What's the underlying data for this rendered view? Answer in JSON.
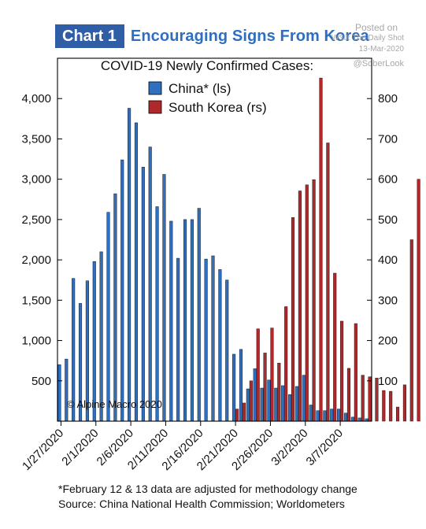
{
  "header": {
    "badge": "Chart 1",
    "title": "Encouraging Signs From Korea"
  },
  "watermark": {
    "posted_on": "Posted on",
    "source": "WSJ: The Daily Shot",
    "date": "13-Mar-2020",
    "handle": "@SoberLook"
  },
  "footnotes": {
    "note": "*February 12 & 13 data are adjusted for methodology change",
    "source": "Source: China National Health Commission; Worldometers"
  },
  "colors": {
    "china": "#2f6fc0",
    "south_korea": "#b0282a",
    "title_blue": "#2f6fc0",
    "badge_bg": "#2f5ea6"
  },
  "chart_data": {
    "type": "bar",
    "title": "COVID-19 Newly Confirmed Cases:",
    "annotation": "© Alpine Macro 2020",
    "legend_position": "top-center",
    "grid": false,
    "left_axis": {
      "range": [
        0,
        4500
      ],
      "ticks": [
        500,
        1000,
        1500,
        2000,
        2500,
        3000,
        3500,
        4000
      ],
      "tick_labels": [
        "500",
        "1,000",
        "1,500",
        "2,000",
        "2,500",
        "3,000",
        "3,500",
        "4,000"
      ]
    },
    "right_axis": {
      "range": [
        0,
        900
      ],
      "ticks": [
        100,
        200,
        300,
        400,
        500,
        600,
        700,
        800
      ],
      "tick_labels": [
        "100",
        "200",
        "300",
        "400",
        "500",
        "600",
        "700",
        "800"
      ]
    },
    "x_tick_labels": [
      "1/27/2020",
      "2/1/2020",
      "2/6/2020",
      "2/11/2020",
      "2/16/2020",
      "2/21/2020",
      "2/26/2020",
      "3/2/2020",
      "3/7/2020"
    ],
    "x_tick_index": [
      0,
      5,
      10,
      15,
      20,
      25,
      30,
      35,
      40
    ],
    "series": [
      {
        "name": "China* (ls)",
        "axis": "left",
        "color": "#2f6fc0",
        "start_index": 0,
        "values": [
          700,
          770,
          1770,
          1460,
          1740,
          1980,
          2100,
          2590,
          2820,
          3240,
          3880,
          3700,
          3150,
          3400,
          2660,
          3060,
          2480,
          2020,
          2500,
          2500,
          2640,
          2010,
          2050,
          1880,
          1750,
          830,
          890,
          400,
          650,
          410,
          510,
          410,
          440,
          330,
          430,
          570,
          200,
          130,
          130,
          150,
          150,
          100,
          50,
          40,
          30
        ]
      },
      {
        "name": "South Korea (rs)",
        "axis": "right",
        "color": "#b0282a",
        "start_index": 25,
        "values": [
          30,
          45,
          100,
          229,
          169,
          231,
          144,
          284,
          505,
          571,
          586,
          599,
          851,
          690,
          367,
          248,
          131,
          242,
          114,
          110,
          107,
          76,
          74,
          35,
          90,
          450,
          600
        ]
      }
    ]
  }
}
